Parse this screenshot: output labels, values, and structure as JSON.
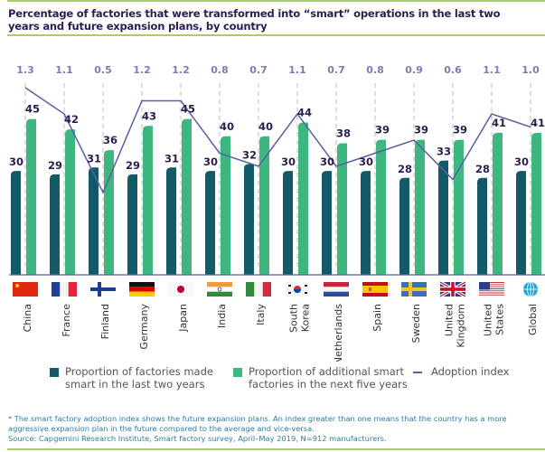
{
  "title": "Percentage of factories that were transformed into “smart” operations in the last two years and future expansion plans, by country",
  "chart_data": {
    "type": "bar",
    "title": "Percentage of factories that were transformed into “smart” operations in the last two years and future expansion plans, by country",
    "xlabel": "",
    "ylabel": "",
    "categories": [
      "China",
      "France",
      "Finland",
      "Germany",
      "Japan",
      "India",
      "Italy",
      "South Korea",
      "Netherlands",
      "Spain",
      "Sweden",
      "United Kingdom",
      "United States",
      "Global"
    ],
    "category_label_lines": [
      [
        "China"
      ],
      [
        "France"
      ],
      [
        "Finland"
      ],
      [
        "Germany"
      ],
      [
        "Japan"
      ],
      [
        "India"
      ],
      [
        "Italy"
      ],
      [
        "South",
        "Korea"
      ],
      [
        "Netherlands"
      ],
      [
        "Spain"
      ],
      [
        "Sweden"
      ],
      [
        "United",
        "Kingdom"
      ],
      [
        "United",
        "States"
      ],
      [
        "Global"
      ]
    ],
    "flags": [
      "china-flag-icon",
      "france-flag-icon",
      "finland-flag-icon",
      "germany-flag-icon",
      "japan-flag-icon",
      "india-flag-icon",
      "italy-flag-icon",
      "south-korea-flag-icon",
      "netherlands-flag-icon",
      "spain-flag-icon",
      "sweden-flag-icon",
      "united-kingdom-flag-icon",
      "united-states-flag-icon",
      "globe-icon"
    ],
    "series": [
      {
        "name": "Proportion of factories made smart in the last two years",
        "type": "bar",
        "color": "#135a68",
        "values": [
          30,
          29,
          31,
          29,
          31,
          30,
          32,
          30,
          30,
          30,
          28,
          33,
          28,
          30
        ]
      },
      {
        "name": "Proportion of additional smart factories in the next five years",
        "type": "bar",
        "color": "#3db67f",
        "values": [
          45,
          42,
          36,
          43,
          45,
          40,
          40,
          44,
          38,
          39,
          39,
          39,
          41,
          41
        ]
      },
      {
        "name": "Adoption index",
        "type": "line",
        "color": "#5a5fa6",
        "values": [
          1.3,
          1.1,
          0.5,
          1.2,
          1.2,
          0.8,
          0.7,
          1.1,
          0.7,
          0.8,
          0.9,
          0.6,
          1.1,
          1.0
        ]
      }
    ],
    "ylim": [
      0,
      50
    ],
    "index_ylim": [
      0.5,
      1.3
    ],
    "grid": false,
    "legend": "bottom"
  },
  "legend": {
    "items": [
      {
        "label_line1": "Proportion of factories made",
        "label_line2": "smart in the last two years"
      },
      {
        "label_line1": "Proportion of additional smart",
        "label_line2": "factories in the next five years"
      },
      {
        "label_line1": "Adoption index"
      }
    ]
  },
  "footnote": {
    "line1": "* The smart factory adoption index shows the future expansion plans. An index greater than one means that the country has a more",
    "line2": "aggressive expansion plan in the future compared to the average and vice-versa.",
    "line3": "Source: Capgemini Research Institute, Smart factory survey, April–May 2019, N=912 manufacturers."
  },
  "colors": {
    "dark_bar": "#135a68",
    "green_bar": "#3db67f",
    "index_line": "#5a5fa6",
    "index_label": "#7b7cb8",
    "rule": "#a6cf6b"
  }
}
